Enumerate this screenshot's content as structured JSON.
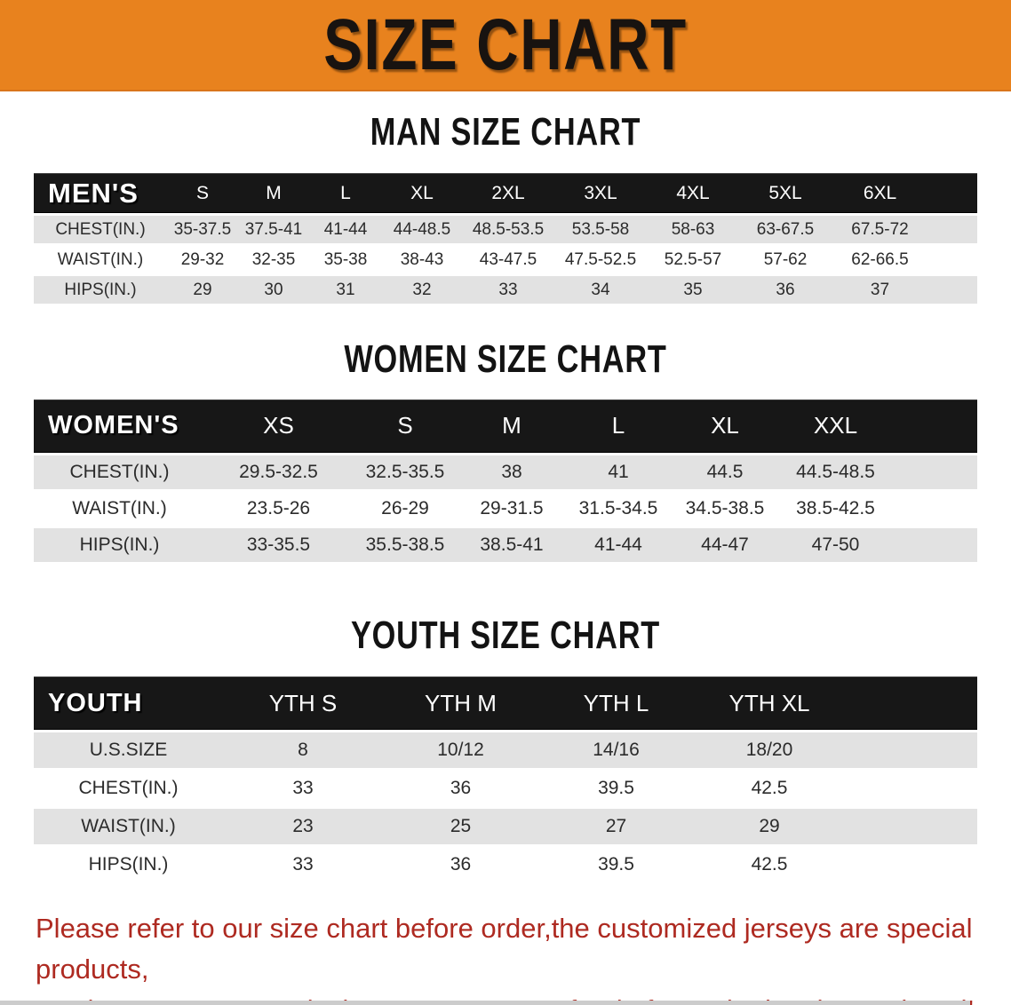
{
  "banner": {
    "title": "SIZE CHART",
    "bg_color": "#E8821E",
    "text_color": "#181310"
  },
  "sections": {
    "men": {
      "title": "MAN SIZE CHART",
      "group_label": "MEN'S",
      "sizes": [
        "S",
        "M",
        "L",
        "XL",
        "2XL",
        "3XL",
        "4XL",
        "5XL",
        "6XL"
      ],
      "rows": [
        {
          "label": "CHEST(IN.)",
          "values": [
            "35-37.5",
            "37.5-41",
            "41-44",
            "44-48.5",
            "48.5-53.5",
            "53.5-58",
            "58-63",
            "63-67.5",
            "67.5-72"
          ]
        },
        {
          "label": "WAIST(IN.)",
          "values": [
            "29-32",
            "32-35",
            "35-38",
            "38-43",
            "43-47.5",
            "47.5-52.5",
            "52.5-57",
            "57-62",
            "62-66.5"
          ]
        },
        {
          "label": "HIPS(IN.)",
          "values": [
            "29",
            "30",
            "31",
            "32",
            "33",
            "34",
            "35",
            "36",
            "37"
          ]
        }
      ]
    },
    "women": {
      "title": "WOMEN SIZE CHART",
      "group_label": "WOMEN'S",
      "sizes": [
        "XS",
        "S",
        "M",
        "L",
        "XL",
        "XXL"
      ],
      "rows": [
        {
          "label": "CHEST(IN.)",
          "values": [
            "29.5-32.5",
            "32.5-35.5",
            "38",
            "41",
            "44.5",
            "44.5-48.5"
          ]
        },
        {
          "label": "WAIST(IN.)",
          "values": [
            "23.5-26",
            "26-29",
            "29-31.5",
            "31.5-34.5",
            "34.5-38.5",
            "38.5-42.5"
          ]
        },
        {
          "label": "HIPS(IN.)",
          "values": [
            "33-35.5",
            "35.5-38.5",
            "38.5-41",
            "41-44",
            "44-47",
            "47-50"
          ]
        }
      ]
    },
    "youth": {
      "title": "YOUTH SIZE CHART",
      "group_label": "YOUTH",
      "sizes": [
        "YTH S",
        "YTH M",
        "YTH L",
        "YTH XL"
      ],
      "rows": [
        {
          "label": "U.S.SIZE",
          "values": [
            "8",
            "10/12",
            "14/16",
            "18/20"
          ]
        },
        {
          "label": "CHEST(IN.)",
          "values": [
            "33",
            "36",
            "39.5",
            "42.5"
          ]
        },
        {
          "label": "WAIST(IN.)",
          "values": [
            "23",
            "25",
            "27",
            "29"
          ]
        },
        {
          "label": "HIPS(IN.)",
          "values": [
            "33",
            "36",
            "39.5",
            "42.5"
          ]
        }
      ]
    }
  },
  "disclaimer": {
    "line1": "Please refer to our size chart before order,the customized jerseys are special products,",
    "line2": "we don't accept cancel, change, teturn or refund after order has been placed!",
    "color": "#AE2A21"
  },
  "table_style": {
    "header_bg": "#171717",
    "header_text": "#ffffff",
    "row_alt_bg": "#e2e2e2",
    "row_bg": "#ffffff"
  }
}
